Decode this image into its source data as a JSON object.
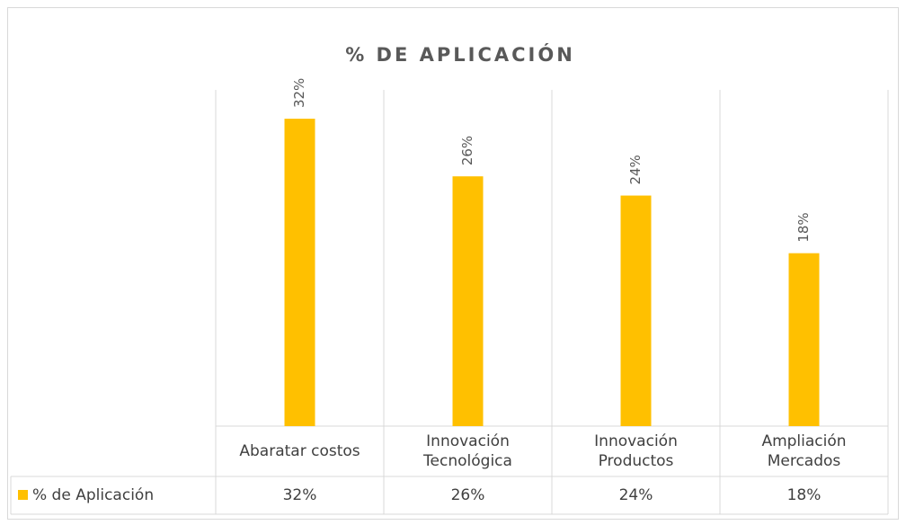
{
  "chart_data": {
    "type": "bar",
    "title": "% DE APLICACIÓN",
    "categories": [
      "Abaratar costos",
      "Innovación Tecnológica",
      "Innovación Productos",
      "Ampliación Mercados"
    ],
    "series": [
      {
        "name": "% de Aplicación",
        "color": "#ffc000",
        "values": [
          32,
          26,
          24,
          18
        ],
        "value_labels": [
          "32%",
          "26%",
          "24%",
          "18%"
        ]
      }
    ],
    "ylim": [
      0,
      35
    ]
  }
}
